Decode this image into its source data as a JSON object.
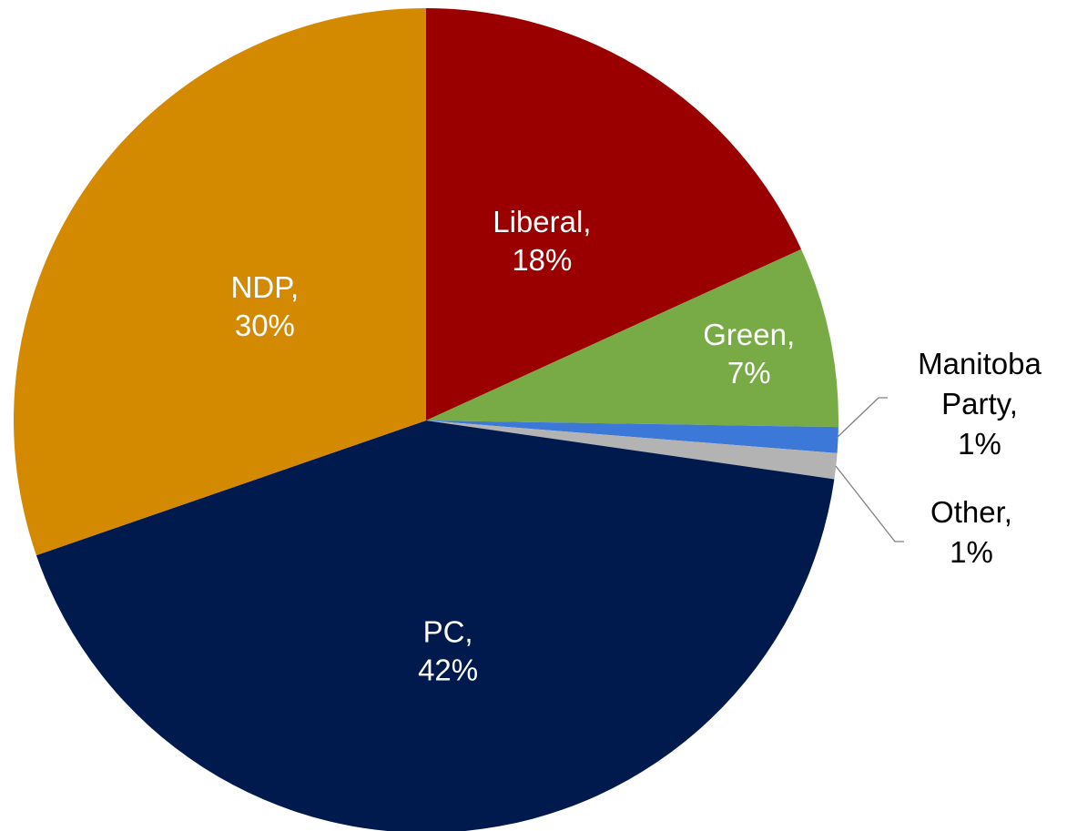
{
  "chart_data": {
    "type": "pie",
    "title": "",
    "start": "top",
    "direction": "clockwise",
    "slices": [
      {
        "name": "Liberal",
        "value": 18,
        "label_line1": "Liberal,",
        "label_line2": "18%",
        "color": "#9b0000",
        "label_color": "#ffffff"
      },
      {
        "name": "Green",
        "value": 7,
        "label_line1": "Green,",
        "label_line2": "7%",
        "color": "#78ab46",
        "label_color": "#ffffff"
      },
      {
        "name": "Manitoba Party",
        "value": 1,
        "label_lines": [
          "Manitoba",
          "Party,",
          "1%"
        ],
        "color": "#3c78d8",
        "label_color": "#000000",
        "outside": true
      },
      {
        "name": "Other",
        "value": 1,
        "label_lines": [
          "Other,",
          "1%"
        ],
        "color": "#b3b3b3",
        "label_color": "#000000",
        "outside": true
      },
      {
        "name": "PC",
        "value": 42,
        "label_line1": "PC,",
        "label_line2": "42%",
        "color": "#001a4e",
        "label_color": "#ffffff"
      },
      {
        "name": "NDP",
        "value": 30,
        "label_line1": "NDP,",
        "label_line2": "30%",
        "color": "#d48a00",
        "label_color": "#ffffff"
      }
    ]
  }
}
